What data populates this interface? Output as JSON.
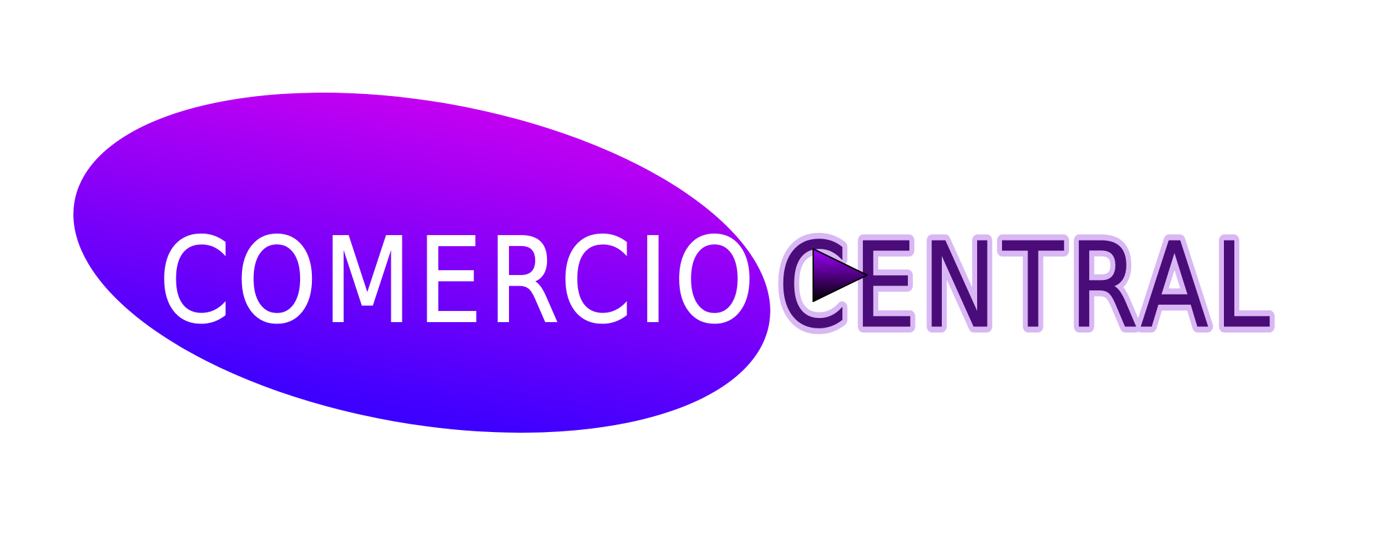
{
  "logo": {
    "word_primary": "COMERCIO",
    "word_secondary": "CENTRAL",
    "colors": {
      "ellipse_top": "#c400f2",
      "ellipse_bottom": "#3a00ff",
      "primary_text": "#ffffff",
      "secondary_text_fill": "#4a0c78",
      "secondary_text_outline": "#d9b7f4",
      "play_icon_top": "#a000ff",
      "play_icon_bottom": "#000000"
    },
    "icons": {
      "play": "play-triangle-icon"
    }
  }
}
